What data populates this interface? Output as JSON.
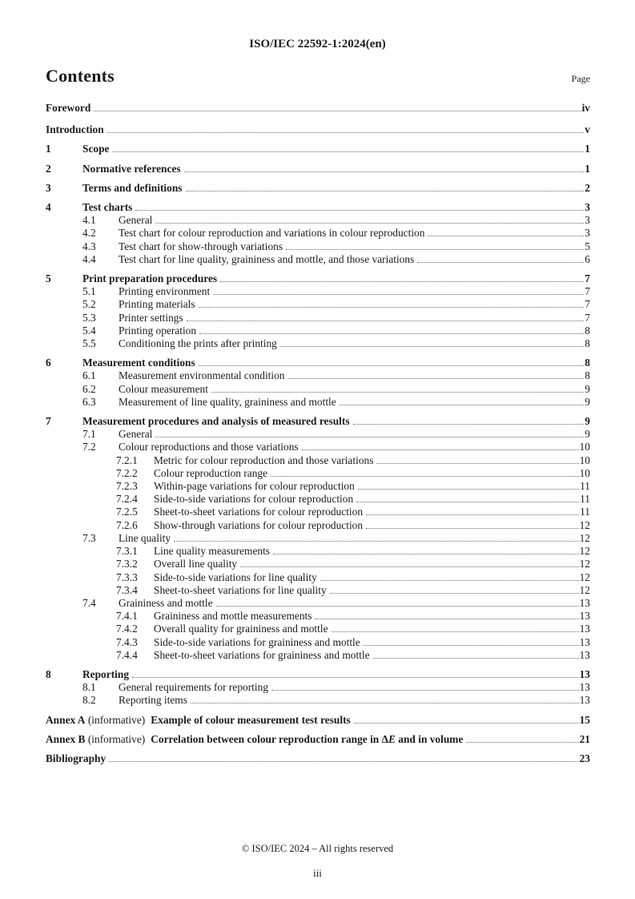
{
  "header": {
    "doc_id": "ISO/IEC 22592-1:2024(en)"
  },
  "contents": {
    "title": "Contents",
    "page_label": "Page"
  },
  "colors": {
    "text": "#1c1c1c",
    "leader_dots": "#6b6b6b",
    "background": "#ffffff"
  },
  "toc": [
    {
      "level": 0,
      "bold": true,
      "title": "Foreword",
      "page": "iv"
    },
    {
      "level": 0,
      "bold": true,
      "title": "Introduction",
      "page": "v"
    },
    {
      "level": 1,
      "bold": true,
      "num": "1",
      "title": "Scope",
      "page": "1"
    },
    {
      "level": 1,
      "bold": true,
      "num": "2",
      "title": "Normative references",
      "page": "1"
    },
    {
      "level": 1,
      "bold": true,
      "num": "3",
      "title": "Terms and definitions",
      "page": "2"
    },
    {
      "level": 1,
      "bold": true,
      "num": "4",
      "title": "Test charts",
      "page": "3"
    },
    {
      "level": 2,
      "bold": false,
      "num": "4.1",
      "title": "General",
      "page": "3"
    },
    {
      "level": 2,
      "bold": false,
      "num": "4.2",
      "title": "Test chart for colour reproduction and variations in colour reproduction",
      "page": "3"
    },
    {
      "level": 2,
      "bold": false,
      "num": "4.3",
      "title": "Test chart for show-through variations",
      "page": "5"
    },
    {
      "level": 2,
      "bold": false,
      "num": "4.4",
      "title": "Test chart for line quality, graininess and mottle, and those variations",
      "page": "6"
    },
    {
      "level": 1,
      "bold": true,
      "num": "5",
      "title": "Print preparation procedures",
      "page": "7"
    },
    {
      "level": 2,
      "bold": false,
      "num": "5.1",
      "title": "Printing environment",
      "page": "7"
    },
    {
      "level": 2,
      "bold": false,
      "num": "5.2",
      "title": "Printing materials",
      "page": "7"
    },
    {
      "level": 2,
      "bold": false,
      "num": "5.3",
      "title": "Printer settings",
      "page": "7"
    },
    {
      "level": 2,
      "bold": false,
      "num": "5.4",
      "title": "Printing operation",
      "page": "8"
    },
    {
      "level": 2,
      "bold": false,
      "num": "5.5",
      "title": "Conditioning the prints after printing",
      "page": "8"
    },
    {
      "level": 1,
      "bold": true,
      "num": "6",
      "title": "Measurement conditions",
      "page": "8"
    },
    {
      "level": 2,
      "bold": false,
      "num": "6.1",
      "title": "Measurement environmental condition",
      "page": "8"
    },
    {
      "level": 2,
      "bold": false,
      "num": "6.2",
      "title": "Colour measurement",
      "page": "9"
    },
    {
      "level": 2,
      "bold": false,
      "num": "6.3",
      "title": "Measurement of line quality, graininess and mottle",
      "page": "9"
    },
    {
      "level": 1,
      "bold": true,
      "num": "7",
      "title": "Measurement procedures and analysis of measured results",
      "page": "9"
    },
    {
      "level": 2,
      "bold": false,
      "num": "7.1",
      "title": "General",
      "page": "9"
    },
    {
      "level": 2,
      "bold": false,
      "num": "7.2",
      "title": "Colour reproductions and those variations",
      "page": "10"
    },
    {
      "level": 3,
      "bold": false,
      "num": "7.2.1",
      "title": "Metric for colour reproduction and those variations",
      "page": "10"
    },
    {
      "level": 3,
      "bold": false,
      "num": "7.2.2",
      "title": "Colour reproduction range",
      "page": "10"
    },
    {
      "level": 3,
      "bold": false,
      "num": "7.2.3",
      "title": "Within-page variations for colour reproduction",
      "page": "11"
    },
    {
      "level": 3,
      "bold": false,
      "num": "7.2.4",
      "title": "Side-to-side variations for colour reproduction",
      "page": "11"
    },
    {
      "level": 3,
      "bold": false,
      "num": "7.2.5",
      "title": "Sheet-to-sheet variations for colour reproduction",
      "page": "11"
    },
    {
      "level": 3,
      "bold": false,
      "num": "7.2.6",
      "title": "Show-through variations for colour reproduction",
      "page": "12"
    },
    {
      "level": 2,
      "bold": false,
      "num": "7.3",
      "title": "Line quality",
      "page": "12"
    },
    {
      "level": 3,
      "bold": false,
      "num": "7.3.1",
      "title": "Line quality measurements",
      "page": "12"
    },
    {
      "level": 3,
      "bold": false,
      "num": "7.3.2",
      "title": "Overall line quality",
      "page": "12"
    },
    {
      "level": 3,
      "bold": false,
      "num": "7.3.3",
      "title": "Side-to-side variations for line quality",
      "page": "12"
    },
    {
      "level": 3,
      "bold": false,
      "num": "7.3.4",
      "title": "Sheet-to-sheet variations for line quality",
      "page": "12"
    },
    {
      "level": 2,
      "bold": false,
      "num": "7.4",
      "title": "Graininess and mottle",
      "page": "13"
    },
    {
      "level": 3,
      "bold": false,
      "num": "7.4.1",
      "title": "Graininess and mottle measurements",
      "page": "13"
    },
    {
      "level": 3,
      "bold": false,
      "num": "7.4.2",
      "title": "Overall quality for graininess and mottle",
      "page": "13"
    },
    {
      "level": 3,
      "bold": false,
      "num": "7.4.3",
      "title": "Side-to-side variations for graininess and mottle",
      "page": "13"
    },
    {
      "level": 3,
      "bold": false,
      "num": "7.4.4",
      "title": "Sheet-to-sheet variations for graininess and mottle",
      "page": "13"
    },
    {
      "level": 1,
      "bold": true,
      "num": "8",
      "title": "Reporting",
      "page": "13"
    },
    {
      "level": 2,
      "bold": false,
      "num": "8.1",
      "title": "General requirements for reporting",
      "page": "13"
    },
    {
      "level": 2,
      "bold": false,
      "num": "8.2",
      "title": "Reporting items",
      "page": "13"
    },
    {
      "level": 0,
      "bold": true,
      "annex_label": "Annex A",
      "qualifier": "(informative)",
      "title": "Example of colour measurement test results",
      "page": "15"
    },
    {
      "level": 0,
      "bold": true,
      "annex_label": "Annex B",
      "qualifier": "(informative)",
      "title_parts": [
        {
          "text": "Correlation between colour reproduction range in Δ"
        },
        {
          "text": "E",
          "italic": true
        },
        {
          "text": " and in volume"
        }
      ],
      "page": "21"
    },
    {
      "level": 0,
      "bold": true,
      "title": "Bibliography",
      "page": "23"
    }
  ],
  "footer": {
    "copyright": "© ISO/IEC 2024 – All rights reserved",
    "page_number": "iii"
  }
}
